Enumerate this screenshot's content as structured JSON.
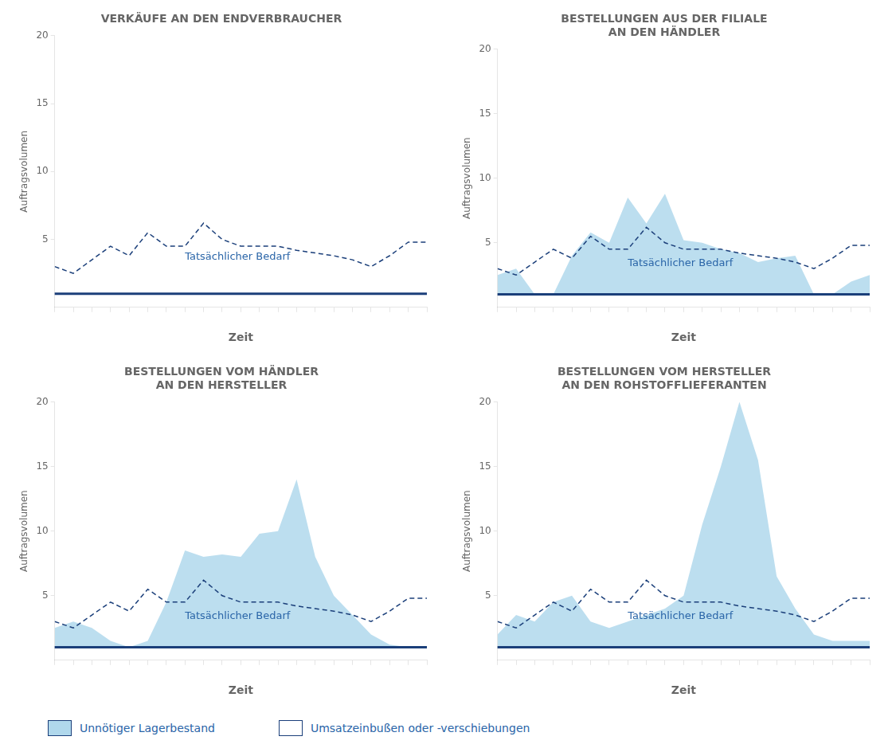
{
  "chart_data": [
    {
      "type": "line",
      "title": "VERKÄUFE AN DEN ENDVERBRAUCHER",
      "xlabel": "Zeit",
      "ylabel": "Auftragsvolumen",
      "x": [
        0,
        1,
        2,
        3,
        4,
        5,
        6,
        7,
        8,
        9,
        10,
        11,
        12,
        13,
        14,
        15,
        16,
        17,
        18,
        19,
        20
      ],
      "xlim": [
        0,
        20
      ],
      "xticks": [
        0,
        1,
        2,
        3,
        4,
        5,
        6,
        7,
        8,
        9,
        10,
        11,
        12,
        13,
        14,
        15,
        16,
        17,
        18,
        19,
        20
      ],
      "ylim": [
        0,
        20
      ],
      "yticks": [
        5,
        10,
        15,
        20
      ],
      "tick_labels": "y",
      "grid": false,
      "baseline": 1.0,
      "series": [
        {
          "type": "line",
          "color": "#1b3f7a",
          "line_style": "dashed",
          "values": [
            3.0,
            2.5,
            3.5,
            4.5,
            3.8,
            5.5,
            4.5,
            4.5,
            6.2,
            5.0,
            4.5,
            4.5,
            4.5,
            4.2,
            4.0,
            3.8,
            3.5,
            3.0,
            3.8,
            4.8,
            4.8
          ]
        }
      ],
      "annotations": [
        {
          "text": "Tatsächlicher Bedarf",
          "x": 7,
          "y": 3.5,
          "color": "#2a65a8"
        }
      ]
    },
    {
      "type": "line",
      "title": "BESTELLUNGEN AUS DER FILIALE\nAN DEN HÄNDLER",
      "xlabel": "Zeit",
      "ylabel": "Auftragsvolumen",
      "x": [
        0,
        1,
        2,
        3,
        4,
        5,
        6,
        7,
        8,
        9,
        10,
        11,
        12,
        13,
        14,
        15,
        16,
        17,
        18,
        19,
        20
      ],
      "xlim": [
        0,
        20
      ],
      "xticks": [
        0,
        1,
        2,
        3,
        4,
        5,
        6,
        7,
        8,
        9,
        10,
        11,
        12,
        13,
        14,
        15,
        16,
        17,
        18,
        19,
        20
      ],
      "ylim": [
        0,
        20
      ],
      "yticks": [
        5,
        10,
        15,
        20
      ],
      "tick_labels": "y",
      "grid": false,
      "baseline": 1.0,
      "series": [
        {
          "type": "area",
          "color": "#b0d8ec",
          "values": [
            2.5,
            3.0,
            1.0,
            1.0,
            4.0,
            5.8,
            5.0,
            8.5,
            6.5,
            8.8,
            5.2,
            5.0,
            4.5,
            4.2,
            3.5,
            3.8,
            4.0,
            1.0,
            1.0,
            2.0,
            2.5
          ]
        },
        {
          "type": "line",
          "color": "#1b3f7a",
          "line_style": "dashed",
          "values": [
            3.0,
            2.5,
            3.5,
            4.5,
            3.8,
            5.5,
            4.5,
            4.5,
            6.2,
            5.0,
            4.5,
            4.5,
            4.5,
            4.2,
            4.0,
            3.8,
            3.5,
            3.0,
            3.8,
            4.8,
            4.8
          ]
        }
      ],
      "annotations": [
        {
          "text": "Tatsächlicher Bedarf",
          "x": 7,
          "y": 3.2,
          "color": "#2a65a8"
        }
      ]
    },
    {
      "type": "line",
      "title": "BESTELLUNGEN VOM HÄNDLER\nAN DEN HERSTELLER",
      "xlabel": "Zeit",
      "ylabel": "Auftragsvolumen",
      "x": [
        0,
        1,
        2,
        3,
        4,
        5,
        6,
        7,
        8,
        9,
        10,
        11,
        12,
        13,
        14,
        15,
        16,
        17,
        18,
        19,
        20
      ],
      "xlim": [
        0,
        20
      ],
      "xticks": [
        0,
        1,
        2,
        3,
        4,
        5,
        6,
        7,
        8,
        9,
        10,
        11,
        12,
        13,
        14,
        15,
        16,
        17,
        18,
        19,
        20
      ],
      "ylim": [
        0,
        20
      ],
      "yticks": [
        5,
        10,
        15,
        20
      ],
      "tick_labels": "y",
      "grid": false,
      "baseline": 1.0,
      "series": [
        {
          "type": "area",
          "color": "#b0d8ec",
          "values": [
            2.5,
            3.0,
            2.5,
            1.5,
            1.0,
            1.5,
            4.5,
            8.5,
            8.0,
            8.2,
            8.0,
            9.8,
            10.0,
            14.0,
            8.0,
            5.0,
            3.5,
            2.0,
            1.2,
            1.0,
            1.0
          ]
        },
        {
          "type": "line",
          "color": "#1b3f7a",
          "line_style": "dashed",
          "values": [
            3.0,
            2.5,
            3.5,
            4.5,
            3.8,
            5.5,
            4.5,
            4.5,
            6.2,
            5.0,
            4.5,
            4.5,
            4.5,
            4.2,
            4.0,
            3.8,
            3.5,
            3.0,
            3.8,
            4.8,
            4.8
          ]
        }
      ],
      "annotations": [
        {
          "text": "Tatsächlicher Bedarf",
          "x": 7,
          "y": 3.2,
          "color": "#2a65a8"
        }
      ]
    },
    {
      "type": "line",
      "title": "BESTELLUNGEN VOM HERSTELLER\nAN DEN ROHSTOFFLIEFERANTEN",
      "xlabel": "Zeit",
      "ylabel": "Auftragsvolumen",
      "x": [
        0,
        1,
        2,
        3,
        4,
        5,
        6,
        7,
        8,
        9,
        10,
        11,
        12,
        13,
        14,
        15,
        16,
        17,
        18,
        19,
        20
      ],
      "xlim": [
        0,
        20
      ],
      "xticks": [
        0,
        1,
        2,
        3,
        4,
        5,
        6,
        7,
        8,
        9,
        10,
        11,
        12,
        13,
        14,
        15,
        16,
        17,
        18,
        19,
        20
      ],
      "ylim": [
        0,
        20
      ],
      "yticks": [
        5,
        10,
        15,
        20
      ],
      "tick_labels": "y",
      "grid": false,
      "baseline": 1.0,
      "series": [
        {
          "type": "area",
          "color": "#b0d8ec",
          "values": [
            2.0,
            3.5,
            3.0,
            4.5,
            5.0,
            3.0,
            2.5,
            3.0,
            3.5,
            4.0,
            5.0,
            10.5,
            15.0,
            20.0,
            15.5,
            6.5,
            4.0,
            2.0,
            1.5,
            1.5,
            1.5
          ]
        },
        {
          "type": "line",
          "color": "#1b3f7a",
          "line_style": "dashed",
          "values": [
            3.0,
            2.5,
            3.5,
            4.5,
            3.8,
            5.5,
            4.5,
            4.5,
            6.2,
            5.0,
            4.5,
            4.5,
            4.5,
            4.2,
            4.0,
            3.8,
            3.5,
            3.0,
            3.8,
            4.8,
            4.8
          ]
        }
      ],
      "annotations": [
        {
          "text": "Tatsächlicher Bedarf",
          "x": 7,
          "y": 3.2,
          "color": "#2a65a8"
        }
      ]
    }
  ],
  "legend": "lower left",
  "legend_entries": [
    {
      "name": "Unnötiger Lagerbestand",
      "color": "#b0d8ec"
    },
    {
      "name": "Umsatzeinbußen oder -verschiebungen",
      "color": "#ffffff"
    }
  ]
}
